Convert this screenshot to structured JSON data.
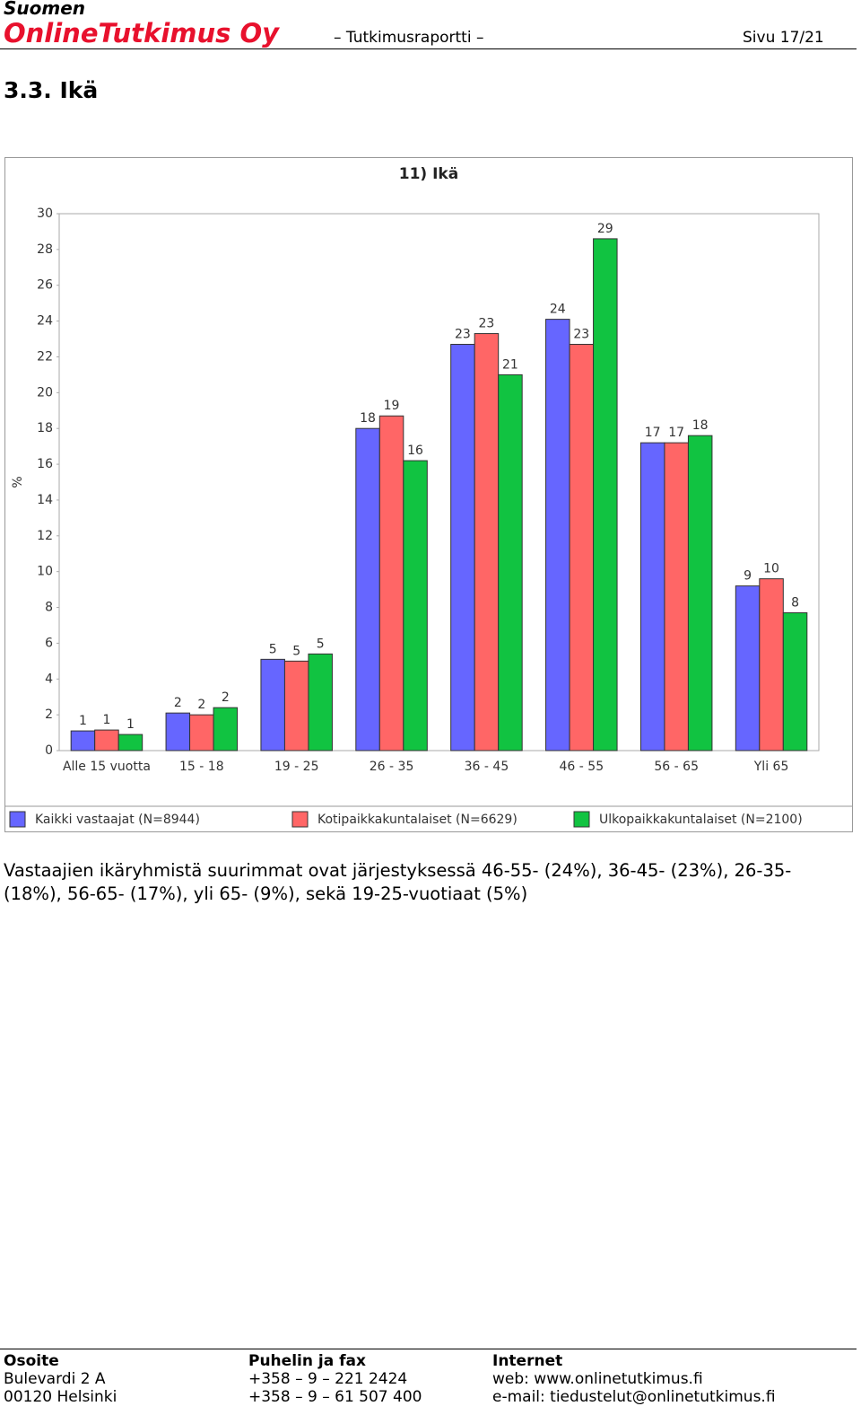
{
  "header": {
    "company_line1": "Suomen",
    "company_line2": "OnlineTutkimus Oy",
    "report": "– Tutkimusraportti –",
    "page": "Sivu 17/21"
  },
  "section_title": "3.3. Ikä",
  "chart_data": {
    "type": "bar",
    "title": "11) Ikä",
    "y_label": "%",
    "categories": [
      "Alle 15 vuotta",
      "15 - 18",
      "19 - 25",
      "26 - 35",
      "36 - 45",
      "46 - 55",
      "56 - 65",
      "Yli 65"
    ],
    "series": [
      {
        "name": "Kaikki vastaajat (N=8944)",
        "color": "#6666ff",
        "values": [
          1.1,
          2.1,
          5.1,
          18.0,
          22.7,
          24.1,
          17.2,
          9.2
        ],
        "value_labels": [
          "1",
          "2",
          "5",
          "18",
          "23",
          "24",
          "17",
          "9"
        ]
      },
      {
        "name": "Kotipaikkakuntalaiset (N=6629)",
        "color": "#ff6666",
        "values": [
          1.15,
          2.0,
          5.0,
          18.7,
          23.3,
          22.7,
          17.2,
          9.6
        ],
        "value_labels": [
          "1",
          "2",
          "5",
          "19",
          "23",
          "23",
          "17",
          "10"
        ]
      },
      {
        "name": "Ulkopaikkakuntalaiset (N=2100)",
        "color": "#11c341",
        "values": [
          0.9,
          2.4,
          5.4,
          16.2,
          21.0,
          28.6,
          17.6,
          7.7
        ],
        "value_labels": [
          "1",
          "2",
          "5",
          "16",
          "21",
          "29",
          "18",
          "8"
        ]
      }
    ],
    "ylim": [
      0,
      30
    ],
    "yticks": [
      0,
      2,
      4,
      6,
      8,
      10,
      12,
      14,
      16,
      18,
      20,
      22,
      24,
      26,
      28,
      30
    ],
    "grid": false,
    "legend": "bottom"
  },
  "paragraph": "Vastaajien ikäryhmistä suurimmat ovat järjestyksessä 46-55- (24%), 36-45- (23%), 26-35- (18%), 56-65- (17%), yli 65- (9%), sekä 19-25-vuotiaat (5%)",
  "footer": {
    "columns": [
      {
        "heading": "Osoite",
        "lines": [
          "Bulevardi 2 A",
          "00120 Helsinki"
        ]
      },
      {
        "heading": "Puhelin ja fax",
        "lines": [
          "+358 – 9 – 221 2424",
          "+358 – 9 – 61 507 400"
        ]
      },
      {
        "heading": "Internet",
        "lines": [
          "web: www.onlinetutkimus.fi",
          "e-mail: tiedustelut@onlinetutkimus.fi"
        ]
      }
    ]
  }
}
